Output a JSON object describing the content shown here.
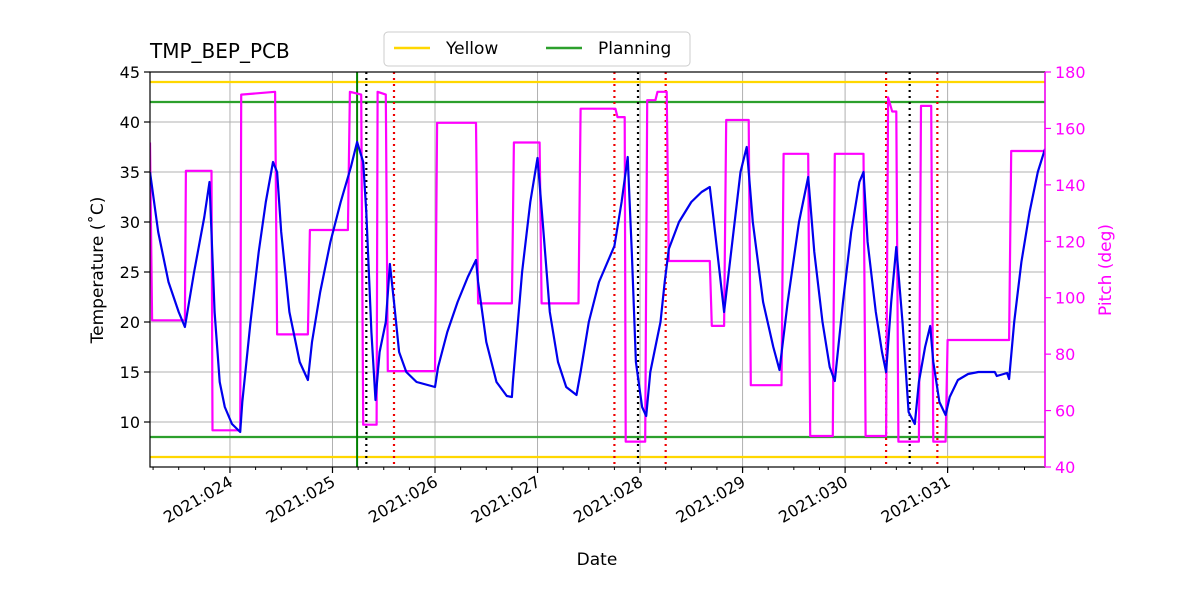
{
  "chart_data": {
    "type": "line",
    "title": "TMP_BEP_PCB",
    "xlabel": "Date",
    "ylabel_left": "Temperature ($^\\circ$C)",
    "ylabel_left_display": "Temperature (˚C)",
    "ylabel_right": "Pitch (deg)",
    "xlim": [
      23.22,
      31.95
    ],
    "ylim_left": [
      5.5,
      45
    ],
    "ylim_right": [
      40,
      180
    ],
    "x_ticks": [
      24,
      25,
      26,
      27,
      28,
      29,
      30,
      31
    ],
    "x_tick_labels": [
      "2021:024",
      "2021:025",
      "2021:026",
      "2021:027",
      "2021:028",
      "2021:029",
      "2021:030",
      "2021:031"
    ],
    "y_ticks_left": [
      10,
      15,
      20,
      25,
      30,
      35,
      40,
      45
    ],
    "y_ticks_right": [
      40,
      60,
      80,
      100,
      120,
      140,
      160,
      180
    ],
    "grid": true,
    "legend_position": "top-center",
    "colors": {
      "temperature": "#0000ee",
      "pitch": "#ff00ff",
      "yellow": "#ffd700",
      "planning": "#2ca02c",
      "now": "#008000",
      "red_marker": "#ee0000",
      "black_marker": "#000000",
      "grid": "#b0b0b0"
    },
    "limits": [
      {
        "name": "Yellow",
        "values": [
          44,
          6.5
        ]
      },
      {
        "name": "Planning",
        "values": [
          42,
          8.5
        ]
      }
    ],
    "vertical_markers": {
      "now": [
        25.24
      ],
      "black_dotted": [
        25.33,
        27.98,
        30.63
      ],
      "red_dotted": [
        25.6,
        27.75,
        28.25,
        30.4,
        30.9
      ]
    },
    "series": [
      {
        "name": "Temperature",
        "axis": "left",
        "points": [
          [
            23.22,
            35
          ],
          [
            23.3,
            29
          ],
          [
            23.4,
            24
          ],
          [
            23.5,
            21
          ],
          [
            23.56,
            19.5
          ],
          [
            23.65,
            25
          ],
          [
            23.75,
            30.5
          ],
          [
            23.8,
            34
          ],
          [
            23.85,
            21
          ],
          [
            23.9,
            14
          ],
          [
            23.95,
            11.5
          ],
          [
            24.02,
            9.8
          ],
          [
            24.1,
            9
          ],
          [
            24.12,
            12
          ],
          [
            24.2,
            20
          ],
          [
            24.28,
            27
          ],
          [
            24.35,
            32
          ],
          [
            24.42,
            36
          ],
          [
            24.46,
            35
          ],
          [
            24.5,
            29
          ],
          [
            24.58,
            21
          ],
          [
            24.68,
            16
          ],
          [
            24.76,
            14.2
          ],
          [
            24.8,
            18
          ],
          [
            24.88,
            23
          ],
          [
            24.98,
            28
          ],
          [
            25.08,
            32
          ],
          [
            25.18,
            35.5
          ],
          [
            25.24,
            38
          ],
          [
            25.3,
            36
          ],
          [
            25.33,
            31
          ],
          [
            25.38,
            19
          ],
          [
            25.42,
            12.2
          ],
          [
            25.46,
            17
          ],
          [
            25.52,
            20
          ],
          [
            25.56,
            25.8
          ],
          [
            25.6,
            22
          ],
          [
            25.65,
            17
          ],
          [
            25.72,
            15
          ],
          [
            25.82,
            14
          ],
          [
            26.0,
            13.5
          ],
          [
            26.03,
            15.5
          ],
          [
            26.12,
            19
          ],
          [
            26.22,
            22
          ],
          [
            26.32,
            24.5
          ],
          [
            26.4,
            26.2
          ],
          [
            26.42,
            24
          ],
          [
            26.5,
            18
          ],
          [
            26.6,
            14
          ],
          [
            26.7,
            12.6
          ],
          [
            26.75,
            12.5
          ],
          [
            26.76,
            14
          ],
          [
            26.85,
            25
          ],
          [
            26.93,
            32
          ],
          [
            27.0,
            36.4
          ],
          [
            27.05,
            30
          ],
          [
            27.12,
            21
          ],
          [
            27.2,
            16
          ],
          [
            27.28,
            13.5
          ],
          [
            27.38,
            12.7
          ],
          [
            27.42,
            15
          ],
          [
            27.5,
            20
          ],
          [
            27.6,
            24
          ],
          [
            27.75,
            27.6
          ],
          [
            27.82,
            32
          ],
          [
            27.88,
            36.5
          ],
          [
            27.92,
            27
          ],
          [
            27.96,
            16
          ],
          [
            28.02,
            11.5
          ],
          [
            28.06,
            10.6
          ],
          [
            28.1,
            15
          ],
          [
            28.16,
            18
          ],
          [
            28.2,
            20
          ],
          [
            28.24,
            24
          ],
          [
            28.28,
            27.3
          ],
          [
            28.38,
            30
          ],
          [
            28.5,
            32
          ],
          [
            28.6,
            33
          ],
          [
            28.68,
            33.5
          ],
          [
            28.72,
            30
          ],
          [
            28.82,
            21
          ],
          [
            28.9,
            28
          ],
          [
            28.98,
            35
          ],
          [
            29.04,
            37.5
          ],
          [
            29.1,
            30
          ],
          [
            29.2,
            22
          ],
          [
            29.3,
            17.5
          ],
          [
            29.36,
            15.2
          ],
          [
            29.44,
            22
          ],
          [
            29.55,
            30
          ],
          [
            29.64,
            34.5
          ],
          [
            29.7,
            27
          ],
          [
            29.78,
            20
          ],
          [
            29.85,
            15.5
          ],
          [
            29.9,
            14.1
          ],
          [
            29.98,
            22
          ],
          [
            30.06,
            29
          ],
          [
            30.14,
            34
          ],
          [
            30.18,
            35
          ],
          [
            30.22,
            28
          ],
          [
            30.3,
            21
          ],
          [
            30.36,
            17
          ],
          [
            30.4,
            15
          ],
          [
            30.45,
            22
          ],
          [
            30.5,
            27.5
          ],
          [
            30.56,
            20
          ],
          [
            30.62,
            11
          ],
          [
            30.68,
            9.8
          ],
          [
            30.72,
            14
          ],
          [
            30.78,
            17.5
          ],
          [
            30.83,
            19.6
          ],
          [
            30.86,
            16
          ],
          [
            30.92,
            12
          ],
          [
            30.98,
            10.7
          ],
          [
            31.02,
            12.5
          ],
          [
            31.1,
            14.2
          ],
          [
            31.2,
            14.8
          ],
          [
            31.3,
            15
          ],
          [
            31.46,
            15
          ],
          [
            31.48,
            14.6
          ],
          [
            31.58,
            14.9
          ],
          [
            31.6,
            14.3
          ],
          [
            31.65,
            20
          ],
          [
            31.72,
            26
          ],
          [
            31.8,
            31
          ],
          [
            31.88,
            35
          ],
          [
            31.95,
            37.3
          ]
        ]
      },
      {
        "name": "Pitch",
        "axis": "right",
        "points": [
          [
            23.22,
            155
          ],
          [
            23.24,
            92
          ],
          [
            23.56,
            92
          ],
          [
            23.57,
            145
          ],
          [
            23.82,
            145
          ],
          [
            23.83,
            53
          ],
          [
            24.1,
            53
          ],
          [
            24.11,
            172
          ],
          [
            24.44,
            173
          ],
          [
            24.46,
            87
          ],
          [
            24.76,
            87
          ],
          [
            24.78,
            124
          ],
          [
            25.15,
            124
          ],
          [
            25.17,
            173
          ],
          [
            25.28,
            172
          ],
          [
            25.3,
            55
          ],
          [
            25.43,
            55
          ],
          [
            25.44,
            173
          ],
          [
            25.52,
            172
          ],
          [
            25.54,
            74
          ],
          [
            26.0,
            74
          ],
          [
            26.02,
            162
          ],
          [
            26.4,
            162
          ],
          [
            26.42,
            98
          ],
          [
            26.75,
            98
          ],
          [
            26.77,
            155
          ],
          [
            27.02,
            155
          ],
          [
            27.04,
            98
          ],
          [
            27.4,
            98
          ],
          [
            27.42,
            167
          ],
          [
            27.76,
            167
          ],
          [
            27.78,
            164
          ],
          [
            27.85,
            164
          ],
          [
            27.86,
            49
          ],
          [
            28.05,
            49
          ],
          [
            28.07,
            170
          ],
          [
            28.15,
            170
          ],
          [
            28.17,
            173
          ],
          [
            28.26,
            173
          ],
          [
            28.28,
            113
          ],
          [
            28.68,
            113
          ],
          [
            28.7,
            90
          ],
          [
            28.82,
            90
          ],
          [
            28.84,
            163
          ],
          [
            29.06,
            163
          ],
          [
            29.08,
            69
          ],
          [
            29.38,
            69
          ],
          [
            29.4,
            151
          ],
          [
            29.64,
            151
          ],
          [
            29.66,
            51
          ],
          [
            29.88,
            51
          ],
          [
            29.9,
            151
          ],
          [
            30.18,
            151
          ],
          [
            30.2,
            51
          ],
          [
            30.4,
            51
          ],
          [
            30.42,
            171
          ],
          [
            30.46,
            166
          ],
          [
            30.5,
            166
          ],
          [
            30.52,
            49
          ],
          [
            30.72,
            49
          ],
          [
            30.74,
            168
          ],
          [
            30.84,
            168
          ],
          [
            30.86,
            49
          ],
          [
            30.98,
            49
          ],
          [
            31.0,
            85
          ],
          [
            31.6,
            85
          ],
          [
            31.62,
            152
          ],
          [
            31.95,
            152
          ]
        ]
      }
    ],
    "legend": [
      "Yellow",
      "Planning"
    ]
  }
}
